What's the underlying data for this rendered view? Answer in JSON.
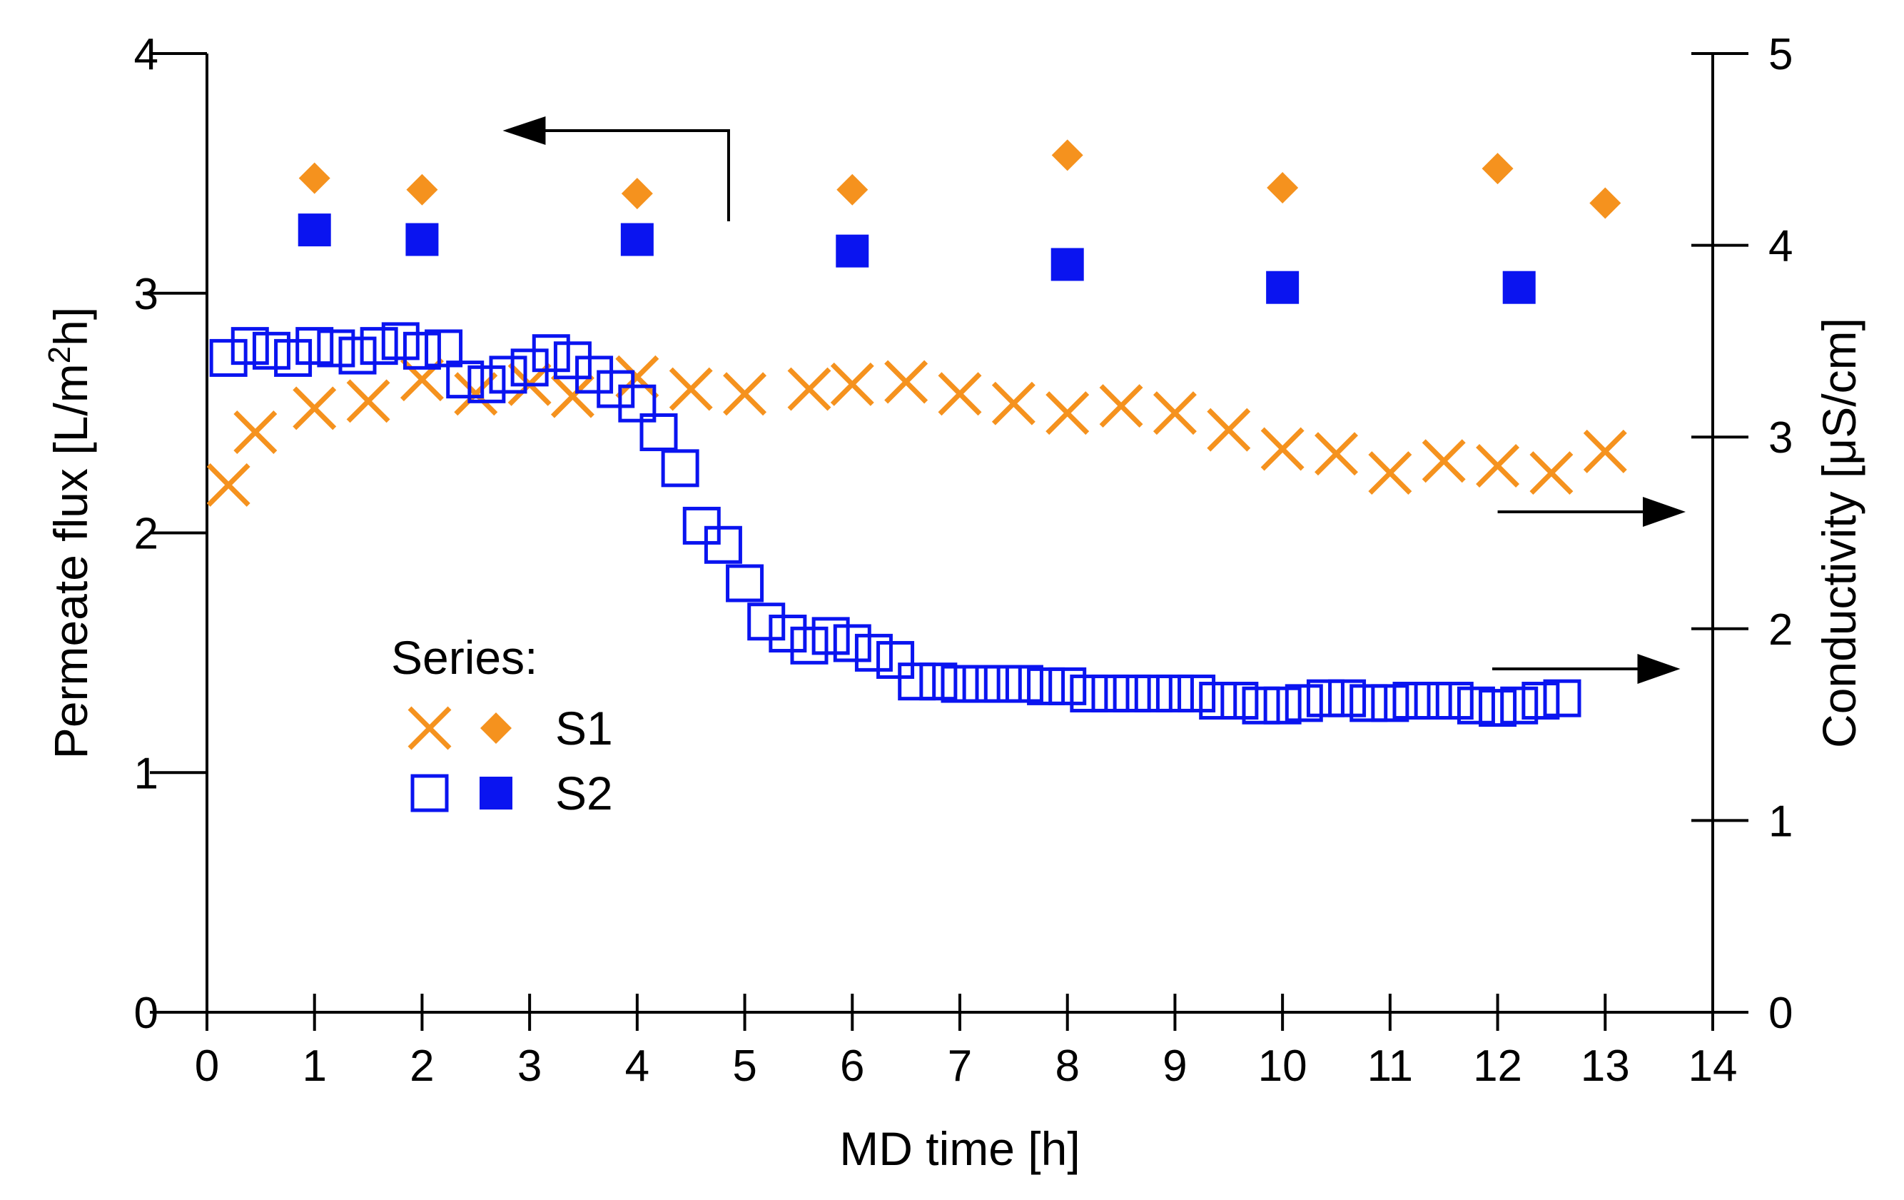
{
  "chart_data": {
    "type": "scatter",
    "xlabel": "MD time [h]",
    "ylabel_left": "Permeate flux [L/m²h]",
    "ylabel_left_parts": {
      "pre": "Permeate flux [L/m",
      "sup": "2",
      "post": "h]"
    },
    "ylabel_right": "Conductivity [μS/cm]",
    "xlim": [
      0,
      14
    ],
    "ylim_left": [
      0,
      4
    ],
    "ylim_right": [
      0,
      5
    ],
    "x_ticks": [
      0,
      1,
      2,
      3,
      4,
      5,
      6,
      7,
      8,
      9,
      10,
      11,
      12,
      13,
      14
    ],
    "y_left_ticks": [
      0,
      1,
      2,
      3,
      4
    ],
    "y_right_ticks": [
      0,
      1,
      2,
      3,
      4,
      5
    ],
    "grid": false,
    "legend": {
      "title": "Series:",
      "entries": [
        {
          "label": "S1",
          "flux_marker": "x",
          "cond_marker": "diamond",
          "color": "#f5921e"
        },
        {
          "label": "S2",
          "flux_marker": "open-square",
          "cond_marker": "filled-square",
          "color": "#0a14f0"
        }
      ]
    },
    "series": [
      {
        "name": "S1 permeate flux",
        "axis": "left",
        "marker": "x",
        "color": "#f5921e",
        "x": [
          0.2,
          0.45,
          1.0,
          1.5,
          2.0,
          2.5,
          3.0,
          3.4,
          4.0,
          4.5,
          5.0,
          5.6,
          6.0,
          6.5,
          7.0,
          7.5,
          8.0,
          8.5,
          9.0,
          9.5,
          10.0,
          10.5,
          11.0,
          11.5,
          12.0,
          12.5,
          13.0
        ],
        "y": [
          2.2,
          2.42,
          2.52,
          2.55,
          2.64,
          2.58,
          2.62,
          2.57,
          2.65,
          2.6,
          2.58,
          2.6,
          2.62,
          2.63,
          2.58,
          2.54,
          2.5,
          2.53,
          2.5,
          2.43,
          2.35,
          2.33,
          2.25,
          2.3,
          2.28,
          2.25,
          2.34
        ]
      },
      {
        "name": "S1 conductivity",
        "axis": "right",
        "marker": "diamond",
        "color": "#f5921e",
        "x": [
          1.0,
          2.0,
          4.0,
          6.0,
          8.0,
          10.0,
          12.0,
          13.0
        ],
        "y": [
          4.35,
          4.29,
          4.27,
          4.29,
          4.47,
          4.3,
          4.4,
          4.22
        ]
      },
      {
        "name": "S2 permeate flux",
        "axis": "left",
        "marker": "open-square",
        "color": "#0a14f0",
        "x": [
          0.2,
          0.4,
          0.6,
          0.8,
          1.0,
          1.2,
          1.4,
          1.6,
          1.8,
          2.0,
          2.2,
          2.4,
          2.6,
          2.8,
          3.0,
          3.2,
          3.4,
          3.6,
          3.8,
          4.0,
          4.2,
          4.4,
          4.6,
          4.8,
          5.0,
          5.2,
          5.4,
          5.6,
          5.8,
          6.0,
          6.2,
          6.4,
          6.6,
          6.8,
          7.0,
          7.2,
          7.4,
          7.6,
          7.8,
          8.0,
          8.2,
          8.4,
          8.6,
          8.8,
          9.0,
          9.2,
          9.4,
          9.6,
          9.8,
          10.0,
          10.2,
          10.4,
          10.6,
          10.8,
          11.0,
          11.2,
          11.4,
          11.6,
          11.8,
          12.0,
          12.2,
          12.4,
          12.6
        ],
        "y": [
          2.73,
          2.78,
          2.76,
          2.73,
          2.78,
          2.77,
          2.74,
          2.78,
          2.8,
          2.76,
          2.77,
          2.64,
          2.62,
          2.66,
          2.69,
          2.75,
          2.72,
          2.66,
          2.6,
          2.54,
          2.42,
          2.27,
          2.03,
          1.95,
          1.79,
          1.63,
          1.58,
          1.53,
          1.57,
          1.54,
          1.5,
          1.47,
          1.38,
          1.38,
          1.37,
          1.37,
          1.37,
          1.37,
          1.36,
          1.36,
          1.33,
          1.33,
          1.33,
          1.33,
          1.33,
          1.33,
          1.3,
          1.3,
          1.28,
          1.28,
          1.29,
          1.31,
          1.31,
          1.29,
          1.29,
          1.3,
          1.3,
          1.3,
          1.28,
          1.27,
          1.28,
          1.3,
          1.31
        ]
      },
      {
        "name": "S2 conductivity",
        "axis": "right",
        "marker": "filled-square",
        "color": "#0a14f0",
        "x": [
          1.0,
          2.0,
          4.0,
          6.0,
          8.0,
          10.0,
          12.2
        ],
        "y": [
          4.08,
          4.03,
          4.03,
          3.97,
          3.9,
          3.78,
          3.78
        ]
      }
    ],
    "annotations": [
      {
        "type": "arrow",
        "points_to": "left axis",
        "near_series": "conductivity markers"
      },
      {
        "type": "arrow",
        "points_to": "right axis",
        "near_series": "S1 permeate flux"
      },
      {
        "type": "arrow",
        "points_to": "right axis",
        "near_series": "S2 permeate flux"
      }
    ]
  }
}
